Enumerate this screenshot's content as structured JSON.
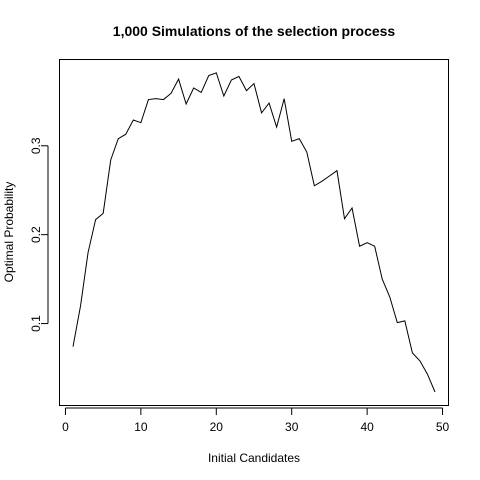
{
  "chart_data": {
    "type": "line",
    "title": "1,000 Simulations of the selection process",
    "xlabel": "Initial Candidates",
    "ylabel": "Optimal Probability",
    "xlim": [
      1,
      49
    ],
    "ylim": [
      0.023,
      0.383
    ],
    "xticks": [
      0,
      10,
      20,
      30,
      40,
      50
    ],
    "yticks": [
      0.1,
      0.2,
      0.3
    ],
    "grid": false,
    "x": [
      1,
      2,
      3,
      4,
      5,
      6,
      7,
      8,
      9,
      10,
      11,
      12,
      13,
      14,
      15,
      16,
      17,
      18,
      19,
      20,
      21,
      22,
      23,
      24,
      25,
      26,
      27,
      28,
      29,
      30,
      31,
      32,
      33,
      34,
      35,
      36,
      37,
      38,
      39,
      40,
      41,
      42,
      43,
      44,
      45,
      46,
      47,
      48,
      49
    ],
    "series": [
      {
        "values": [
          0.074,
          0.12,
          0.18,
          0.217,
          0.224,
          0.284,
          0.308,
          0.313,
          0.329,
          0.326,
          0.352,
          0.353,
          0.352,
          0.359,
          0.375,
          0.347,
          0.365,
          0.36,
          0.379,
          0.382,
          0.356,
          0.374,
          0.378,
          0.362,
          0.37,
          0.337,
          0.348,
          0.321,
          0.353,
          0.305,
          0.308,
          0.293,
          0.255,
          0.26,
          0.266,
          0.272,
          0.218,
          0.23,
          0.187,
          0.191,
          0.187,
          0.15,
          0.13,
          0.101,
          0.103,
          0.067,
          0.058,
          0.043,
          0.023
        ],
        "color": "#000000"
      }
    ]
  }
}
